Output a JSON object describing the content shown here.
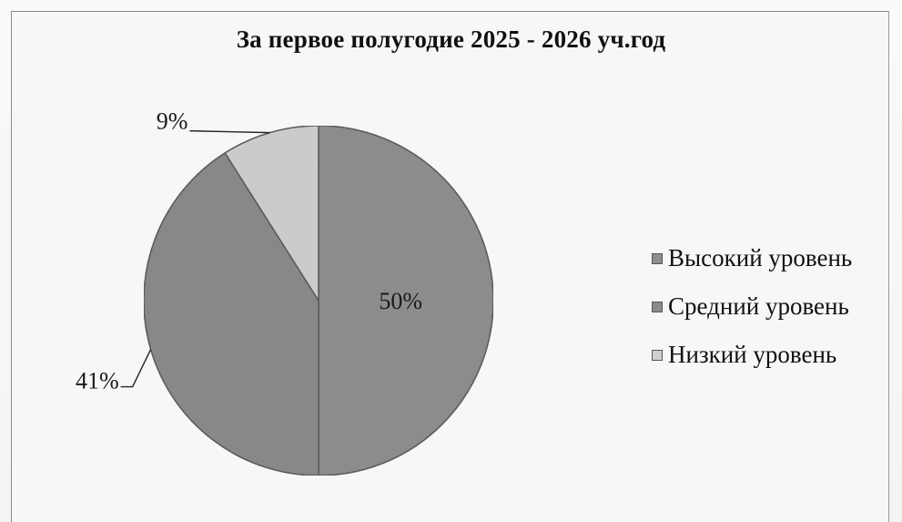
{
  "chart_data": {
    "type": "pie",
    "title": "За первое полугодие 2025 - 2026 уч.год",
    "categories": [
      "Высокий уровень",
      "Средний уровень",
      "Низкий уровень"
    ],
    "values": [
      50,
      41,
      9
    ],
    "labels": [
      "50%",
      "41%",
      "9%"
    ],
    "colors": [
      "#8f8f8f",
      "#8b8b8b",
      "#cfcfcf"
    ],
    "legend": "right"
  }
}
